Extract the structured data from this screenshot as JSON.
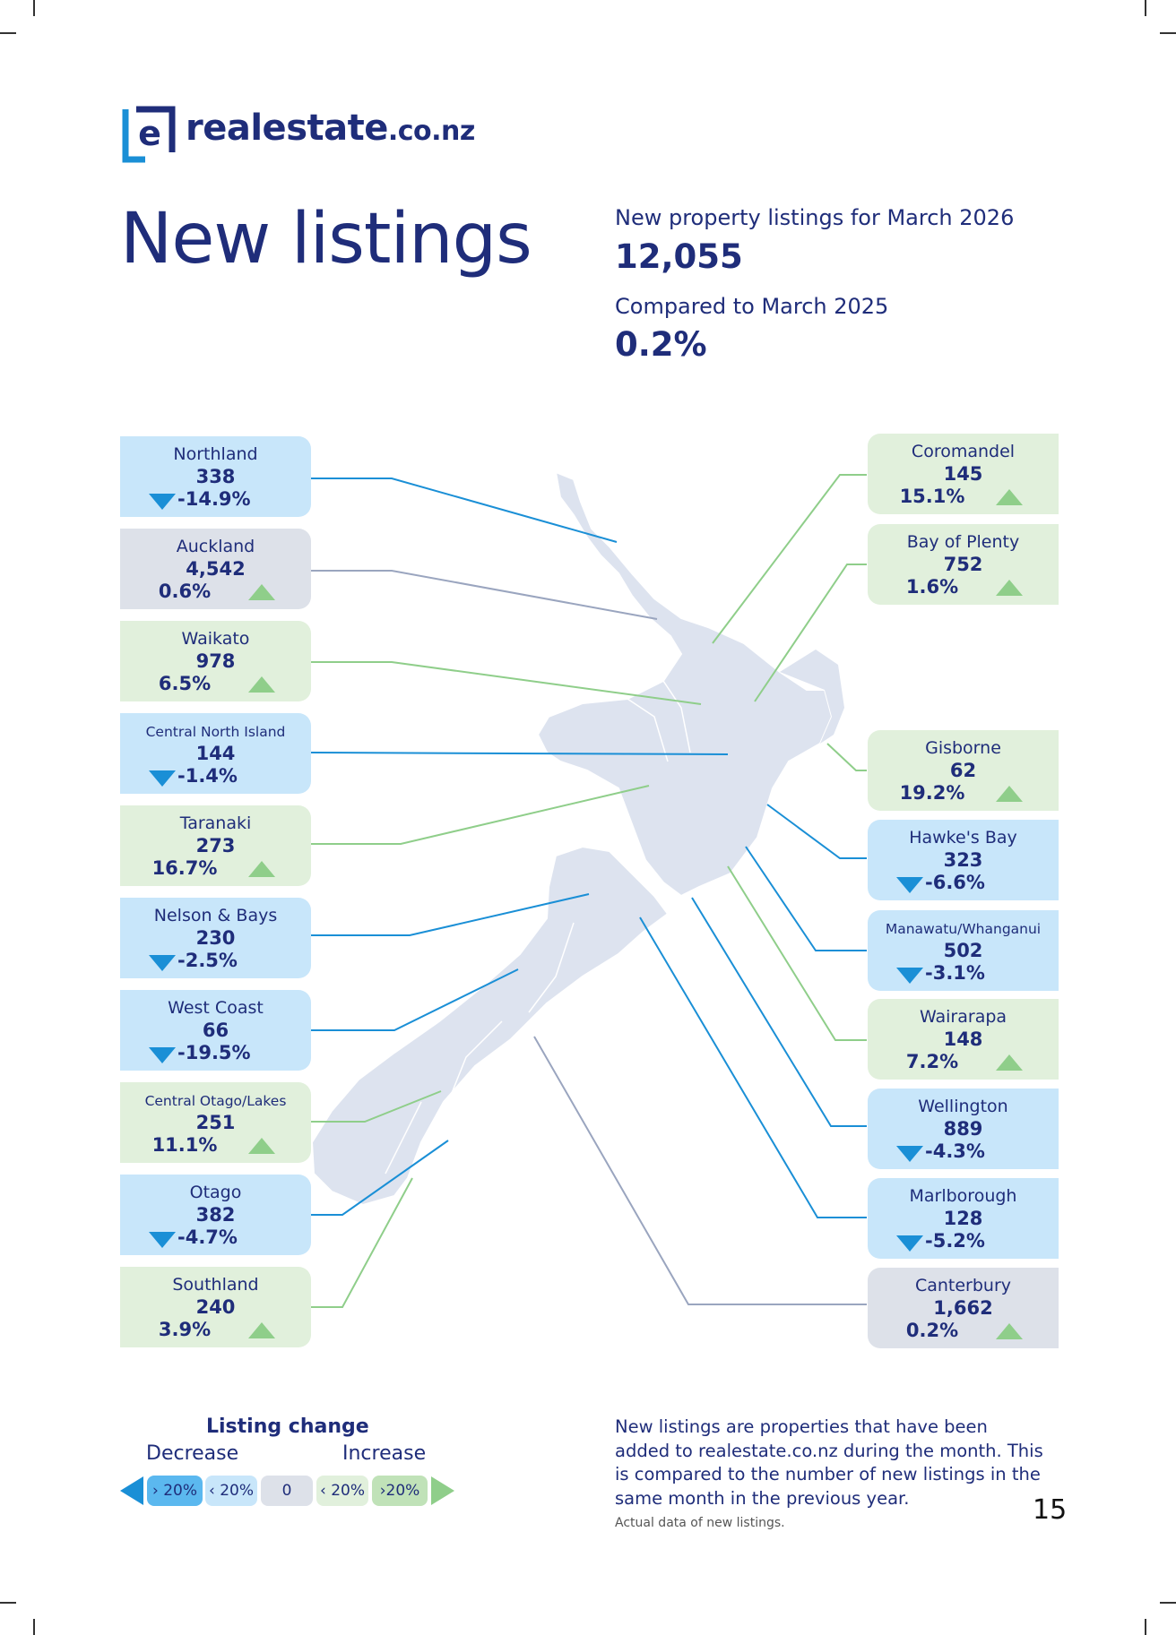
{
  "brand": {
    "logo_glyph": "e",
    "name_main": "realestate",
    "name_tld": ".co.nz",
    "colors": {
      "navy": "#1f2d7a",
      "blue": "#1a8fd6",
      "green": "#8fce8a"
    }
  },
  "title": "New listings",
  "summary": {
    "listings_label": "New property listings for March 2026",
    "listings_value": "12,055",
    "compare_label": "Compared to March 2025",
    "compare_value": "0.2%"
  },
  "regions_left": [
    {
      "name": "Northland",
      "value": "338",
      "change": "-14.9%",
      "trend": "decrease"
    },
    {
      "name": "Auckland",
      "value": "4,542",
      "change": "0.6%",
      "trend": "neutral"
    },
    {
      "name": "Waikato",
      "value": "978",
      "change": "6.5%",
      "trend": "increase"
    },
    {
      "name": "Central North Island",
      "value": "144",
      "change": "-1.4%",
      "trend": "decrease"
    },
    {
      "name": "Taranaki",
      "value": "273",
      "change": "16.7%",
      "trend": "increase"
    },
    {
      "name": "Nelson & Bays",
      "value": "230",
      "change": "-2.5%",
      "trend": "decrease"
    },
    {
      "name": "West Coast",
      "value": "66",
      "change": "-19.5%",
      "trend": "decrease"
    },
    {
      "name": "Central Otago/Lakes",
      "value": "251",
      "change": "11.1%",
      "trend": "increase"
    },
    {
      "name": "Otago",
      "value": "382",
      "change": "-4.7%",
      "trend": "decrease"
    },
    {
      "name": "Southland",
      "value": "240",
      "change": "3.9%",
      "trend": "increase"
    }
  ],
  "regions_right": [
    {
      "name": "Coromandel",
      "value": "145",
      "change": "15.1%",
      "trend": "increase"
    },
    {
      "name": "Bay of Plenty",
      "value": "752",
      "change": "1.6%",
      "trend": "increase"
    },
    {
      "name": "Gisborne",
      "value": "62",
      "change": "19.2%",
      "trend": "increase"
    },
    {
      "name": "Hawke's Bay",
      "value": "323",
      "change": "-6.6%",
      "trend": "decrease"
    },
    {
      "name": "Manawatu/Whanganui",
      "value": "502",
      "change": "-3.1%",
      "trend": "decrease"
    },
    {
      "name": "Wairarapa",
      "value": "148",
      "change": "7.2%",
      "trend": "increase"
    },
    {
      "name": "Wellington",
      "value": "889",
      "change": "-4.3%",
      "trend": "decrease"
    },
    {
      "name": "Marlborough",
      "value": "128",
      "change": "-5.2%",
      "trend": "decrease"
    },
    {
      "name": "Canterbury",
      "value": "1,662",
      "change": "0.2%",
      "trend": "neutral"
    }
  ],
  "legend": {
    "title": "Listing change",
    "decrease_label": "Decrease",
    "increase_label": "Increase",
    "scale": [
      "› 20%",
      "‹ 20%",
      "0",
      "‹ 20%",
      "›20%"
    ]
  },
  "note": "New listings are properties that have been added to realestate.co.nz during the month. This is compared to the number of new listings in the same month in the previous year.",
  "note_small": "Actual data of new listings.",
  "page_number": "15"
}
